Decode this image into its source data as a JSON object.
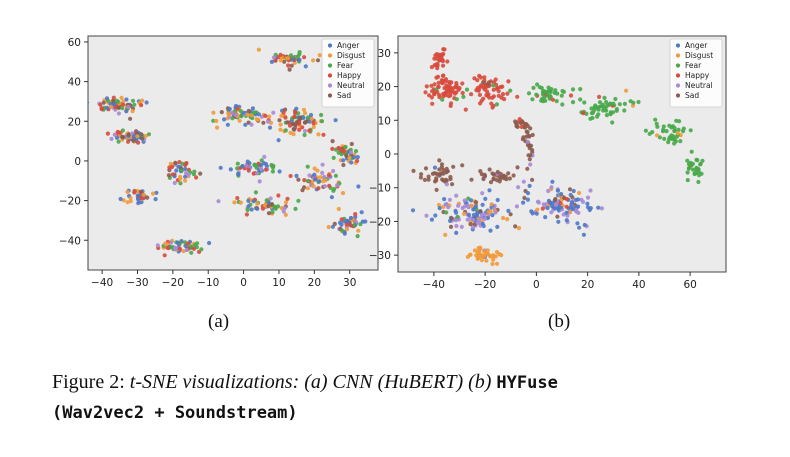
{
  "figure": {
    "panel_a_label": "(a)",
    "panel_b_label": "(b)",
    "caption_prefix": "Figure 2: ",
    "caption_italic": "t-SNE visualizations: (a) CNN (HuBERT) (b) ",
    "caption_mono_1": "HYFuse",
    "caption_mono_2": "(Wav2vec2 + Soundstream)"
  },
  "chart_data": [
    {
      "type": "scatter",
      "panel": "(a)",
      "title": "",
      "xlabel": "",
      "ylabel": "",
      "xlim": [
        -44,
        38
      ],
      "ylim": [
        -55,
        63
      ],
      "xticks": [
        -40,
        -30,
        -20,
        -10,
        0,
        10,
        20,
        30
      ],
      "yticks": [
        -40,
        -20,
        0,
        20,
        40,
        60
      ],
      "grid": false,
      "background": "#ebebeb",
      "legend_position": "top-right",
      "legend": [
        "Anger",
        "Disgust",
        "Fear",
        "Happy",
        "Neutral",
        "Sad"
      ],
      "colors": {
        "Anger": "#4c78c8",
        "Disgust": "#f29a3a",
        "Fear": "#48a84a",
        "Happy": "#d84a3c",
        "Neutral": "#a98ad6",
        "Sad": "#8c5b4d"
      },
      "clusters": [
        {
          "center": [
            -36,
            28
          ],
          "spread": [
            5.5,
            3.5
          ],
          "n": 70,
          "mix": {
            "Anger": 0.2,
            "Disgust": 0.15,
            "Fear": 0.1,
            "Happy": 0.2,
            "Neutral": 0.15,
            "Sad": 0.2
          }
        },
        {
          "center": [
            -32,
            12
          ],
          "spread": [
            5.5,
            3
          ],
          "n": 60,
          "mix": {
            "Anger": 0.25,
            "Disgust": 0.15,
            "Fear": 0.1,
            "Happy": 0.25,
            "Neutral": 0.15,
            "Sad": 0.1
          }
        },
        {
          "center": [
            -30,
            -18
          ],
          "spread": [
            4,
            3
          ],
          "n": 40,
          "mix": {
            "Anger": 0.35,
            "Disgust": 0.2,
            "Fear": 0.1,
            "Happy": 0.15,
            "Neutral": 0.1,
            "Sad": 0.1
          }
        },
        {
          "center": [
            -18,
            -5
          ],
          "spread": [
            3.5,
            5
          ],
          "n": 45,
          "mix": {
            "Anger": 0.25,
            "Disgust": 0.1,
            "Fear": 0.15,
            "Happy": 0.25,
            "Neutral": 0.1,
            "Sad": 0.15
          }
        },
        {
          "center": [
            -18,
            -43
          ],
          "spread": [
            5.5,
            3
          ],
          "n": 55,
          "mix": {
            "Anger": 0.15,
            "Disgust": 0.15,
            "Fear": 0.25,
            "Happy": 0.15,
            "Neutral": 0.2,
            "Sad": 0.1
          }
        },
        {
          "center": [
            -1,
            23
          ],
          "spread": [
            7,
            5
          ],
          "n": 70,
          "mix": {
            "Anger": 0.15,
            "Disgust": 0.25,
            "Fear": 0.25,
            "Happy": 0.15,
            "Neutral": 0.1,
            "Sad": 0.1
          }
        },
        {
          "center": [
            15,
            20
          ],
          "spread": [
            8,
            6
          ],
          "n": 80,
          "mix": {
            "Anger": 0.15,
            "Disgust": 0.25,
            "Fear": 0.2,
            "Happy": 0.2,
            "Neutral": 0.05,
            "Sad": 0.15
          }
        },
        {
          "center": [
            2,
            -3
          ],
          "spread": [
            7,
            4
          ],
          "n": 55,
          "mix": {
            "Anger": 0.15,
            "Disgust": 0.1,
            "Fear": 0.25,
            "Happy": 0.15,
            "Neutral": 0.25,
            "Sad": 0.1
          }
        },
        {
          "center": [
            6,
            -22
          ],
          "spread": [
            8,
            4
          ],
          "n": 60,
          "mix": {
            "Anger": 0.2,
            "Disgust": 0.2,
            "Fear": 0.15,
            "Happy": 0.2,
            "Neutral": 0.1,
            "Sad": 0.15
          }
        },
        {
          "center": [
            22,
            -10
          ],
          "spread": [
            6,
            6
          ],
          "n": 55,
          "mix": {
            "Anger": 0.2,
            "Disgust": 0.25,
            "Fear": 0.15,
            "Happy": 0.15,
            "Neutral": 0.1,
            "Sad": 0.15
          }
        },
        {
          "center": [
            29,
            4
          ],
          "spread": [
            4,
            5
          ],
          "n": 40,
          "mix": {
            "Anger": 0.15,
            "Disgust": 0.2,
            "Fear": 0.2,
            "Happy": 0.2,
            "Neutral": 0.05,
            "Sad": 0.2
          }
        },
        {
          "center": [
            30,
            -32
          ],
          "spread": [
            3.5,
            5
          ],
          "n": 45,
          "mix": {
            "Anger": 0.25,
            "Disgust": 0.15,
            "Fear": 0.2,
            "Happy": 0.15,
            "Neutral": 0.1,
            "Sad": 0.15
          }
        },
        {
          "center": [
            13,
            51
          ],
          "spread": [
            5,
            3.5
          ],
          "n": 45,
          "mix": {
            "Anger": 0.2,
            "Disgust": 0.25,
            "Fear": 0.15,
            "Happy": 0.15,
            "Neutral": 0.05,
            "Sad": 0.2
          }
        }
      ]
    },
    {
      "type": "scatter",
      "panel": "(b)",
      "title": "",
      "xlabel": "",
      "ylabel": "",
      "xlim": [
        -54,
        74
      ],
      "ylim": [
        -35,
        35
      ],
      "xticks": [
        -40,
        -20,
        0,
        20,
        40,
        60
      ],
      "yticks": [
        -30,
        -20,
        -10,
        0,
        10,
        20,
        30
      ],
      "grid": false,
      "background": "#ebebeb",
      "legend_position": "top-right",
      "legend": [
        "Anger",
        "Disgust",
        "Fear",
        "Happy",
        "Neutral",
        "Sad"
      ],
      "colors": {
        "Anger": "#4c78c8",
        "Disgust": "#f29a3a",
        "Fear": "#48a84a",
        "Happy": "#d84a3c",
        "Neutral": "#a98ad6",
        "Sad": "#8c5b4d"
      },
      "clusters": [
        {
          "center": [
            -38,
            28
          ],
          "spread": [
            3,
            2.5
          ],
          "n": 25,
          "mix": {
            "Happy": 1.0
          }
        },
        {
          "center": [
            -36,
            19
          ],
          "spread": [
            6,
            3.5
          ],
          "n": 70,
          "mix": {
            "Happy": 0.95,
            "Fear": 0.05
          }
        },
        {
          "center": [
            -18,
            19
          ],
          "spread": [
            7,
            4
          ],
          "n": 60,
          "mix": {
            "Happy": 0.9,
            "Sad": 0.05,
            "Fear": 0.05
          }
        },
        {
          "center": [
            -6,
            9
          ],
          "spread": [
            3,
            2
          ],
          "n": 15,
          "mix": {
            "Sad": 0.8,
            "Happy": 0.2
          }
        },
        {
          "center": [
            5,
            18
          ],
          "spread": [
            9,
            2.5
          ],
          "n": 45,
          "mix": {
            "Fear": 0.9,
            "Happy": 0.1
          }
        },
        {
          "center": [
            28,
            14
          ],
          "spread": [
            10,
            3
          ],
          "n": 55,
          "mix": {
            "Fear": 0.9,
            "Happy": 0.05,
            "Disgust": 0.05
          }
        },
        {
          "center": [
            52,
            6
          ],
          "spread": [
            7,
            3.5
          ],
          "n": 40,
          "mix": {
            "Fear": 0.9,
            "Disgust": 0.1
          }
        },
        {
          "center": [
            62,
            -4
          ],
          "spread": [
            3.5,
            4
          ],
          "n": 30,
          "mix": {
            "Fear": 0.85,
            "Disgust": 0.1,
            "Sad": 0.05
          }
        },
        {
          "center": [
            -38,
            -6
          ],
          "spread": [
            8,
            3
          ],
          "n": 40,
          "mix": {
            "Sad": 0.85,
            "Anger": 0.1,
            "Neutral": 0.05
          }
        },
        {
          "center": [
            -15,
            -7
          ],
          "spread": [
            8,
            2.5
          ],
          "n": 35,
          "mix": {
            "Sad": 0.8,
            "Anger": 0.1,
            "Neutral": 0.1
          }
        },
        {
          "center": [
            -3,
            3
          ],
          "spread": [
            2,
            6
          ],
          "n": 25,
          "mix": {
            "Sad": 0.9,
            "Neutral": 0.1
          }
        },
        {
          "center": [
            -25,
            -18
          ],
          "spread": [
            14,
            5
          ],
          "n": 120,
          "mix": {
            "Anger": 0.35,
            "Neutral": 0.35,
            "Disgust": 0.15,
            "Sad": 0.1,
            "Fear": 0.05
          }
        },
        {
          "center": [
            10,
            -15
          ],
          "spread": [
            12,
            5
          ],
          "n": 110,
          "mix": {
            "Anger": 0.4,
            "Neutral": 0.35,
            "Disgust": 0.1,
            "Sad": 0.1,
            "Happy": 0.05
          }
        },
        {
          "center": [
            -20,
            -30
          ],
          "spread": [
            5,
            2
          ],
          "n": 40,
          "mix": {
            "Disgust": 0.9,
            "Anger": 0.05,
            "Neutral": 0.05
          }
        }
      ]
    }
  ]
}
